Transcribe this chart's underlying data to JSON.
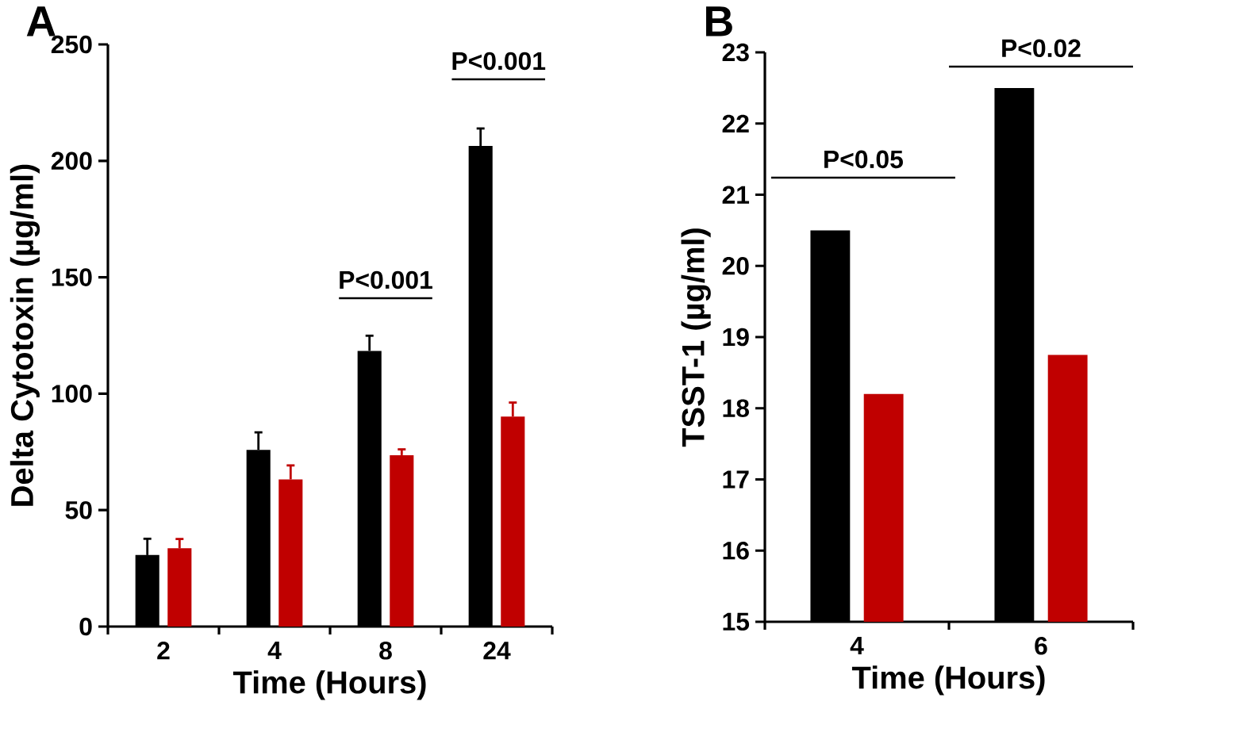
{
  "chart_data": [
    {
      "type": "bar",
      "title": "A",
      "xlabel": "Time (Hours)",
      "ylabel": "Delta Cytotoxin (µg/ml)",
      "categories": [
        "2",
        "4",
        "8",
        "24"
      ],
      "series": [
        {
          "color": "#000000",
          "values": [
            30.7,
            75.9,
            118.4,
            206.4
          ],
          "errors": [
            7,
            7.5,
            6.5,
            7.5
          ]
        },
        {
          "color": "#c00000",
          "values": [
            33.6,
            63.2,
            73.6,
            90.2
          ],
          "errors": [
            4,
            6,
            2.5,
            6
          ]
        }
      ],
      "ylim": [
        0,
        250
      ],
      "yticks": [
        0,
        50,
        100,
        150,
        200,
        250
      ],
      "annotations": [
        "P<0.001",
        "P<0.001"
      ]
    },
    {
      "type": "bar",
      "title": "B",
      "xlabel": "Time (Hours)",
      "ylabel": "TSST-1 (µg/ml)",
      "categories": [
        "4",
        "6"
      ],
      "series": [
        {
          "color": "#000000",
          "values": [
            20.5,
            22.5
          ]
        },
        {
          "color": "#c00000",
          "values": [
            18.2,
            18.75
          ]
        }
      ],
      "ylim": [
        15,
        23
      ],
      "yticks": [
        15,
        16,
        17,
        18,
        19,
        20,
        21,
        22,
        23
      ],
      "annotations": [
        "P<0.05",
        "P<0.02"
      ]
    }
  ]
}
